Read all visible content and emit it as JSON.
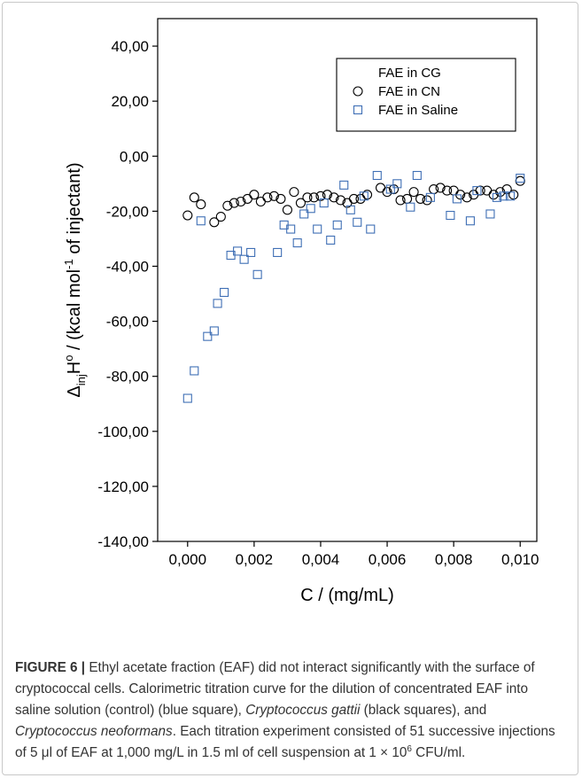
{
  "chart_data": {
    "type": "scatter",
    "xlabel": "C / (mg/mL)",
    "ylabel_parts": {
      "delta": "Δ",
      "sub": "inj",
      "h": "H",
      "sup": "o",
      "mid": " / (kcal mol",
      "sup2": "-1",
      "end": " of injectant)"
    },
    "xlim": [
      -0.0009,
      0.0105
    ],
    "ylim": [
      -140,
      50
    ],
    "xticks": [
      "0,000",
      "0,002",
      "0,004",
      "0,006",
      "0,008",
      "0,010"
    ],
    "yticks": [
      "40,00",
      "20,00",
      "0,00",
      "-20,00",
      "-40,00",
      "-60,00",
      "-80,00",
      "-100,00",
      "-120,00",
      "-140,00"
    ],
    "legend_position": "top-right",
    "series": [
      {
        "name": "FAE in CG",
        "marker": "none",
        "color": "#000000",
        "x": [],
        "y": []
      },
      {
        "name": "FAE in CN",
        "marker": "circle",
        "color": "#000000",
        "x": [
          0.0,
          0.0002,
          0.0004,
          0.0008,
          0.001,
          0.0012,
          0.0014,
          0.0016,
          0.0018,
          0.002,
          0.0022,
          0.0024,
          0.0026,
          0.0028,
          0.003,
          0.0032,
          0.0034,
          0.0036,
          0.0038,
          0.004,
          0.0042,
          0.0044,
          0.0046,
          0.0048,
          0.005,
          0.0052,
          0.0054,
          0.0058,
          0.006,
          0.0062,
          0.0064,
          0.0066,
          0.0068,
          0.007,
          0.0072,
          0.0074,
          0.0076,
          0.0078,
          0.008,
          0.0082,
          0.0084,
          0.0086,
          0.0088,
          0.009,
          0.0092,
          0.0094,
          0.0096,
          0.0098,
          0.01
        ],
        "y": [
          -21.5,
          -15,
          -17.5,
          -24,
          -22,
          -18,
          -17,
          -16.5,
          -15.5,
          -14,
          -16.5,
          -15,
          -14.5,
          -15.5,
          -19.5,
          -13,
          -17,
          -15,
          -15,
          -14.5,
          -14,
          -15,
          -16,
          -17,
          -15.5,
          -15.5,
          -14,
          -11.5,
          -13,
          -12,
          -16,
          -15.5,
          -13,
          -15.5,
          -16,
          -12,
          -11.5,
          -12.5,
          -12.5,
          -14,
          -15,
          -14,
          -12.5,
          -12.5,
          -14,
          -13,
          -12,
          -14,
          -9
        ]
      },
      {
        "name": "FAE in Saline",
        "marker": "square",
        "color": "#3f6fb5",
        "x": [
          0.0,
          0.0002,
          0.0004,
          0.0006,
          0.0008,
          0.0009,
          0.0011,
          0.0013,
          0.0015,
          0.0017,
          0.0019,
          0.0021,
          0.0027,
          0.0029,
          0.0031,
          0.0033,
          0.0035,
          0.0037,
          0.0039,
          0.0041,
          0.0043,
          0.0045,
          0.0047,
          0.0049,
          0.0051,
          0.0053,
          0.0055,
          0.0057,
          0.0061,
          0.0063,
          0.0067,
          0.0069,
          0.0073,
          0.0079,
          0.0081,
          0.0085,
          0.0087,
          0.0091,
          0.0093,
          0.0095,
          0.0097,
          0.01
        ],
        "y": [
          -88,
          -78,
          -23.5,
          -65.5,
          -63.5,
          -53.5,
          -49.5,
          -36,
          -34.5,
          -37.5,
          -35,
          -43,
          -35,
          -25,
          -26.5,
          -31.5,
          -21,
          -19,
          -26.5,
          -17,
          -30.5,
          -25,
          -10.5,
          -19.5,
          -24,
          -14.5,
          -26.5,
          -7,
          -12,
          -10,
          -18.5,
          -7,
          -15,
          -21.5,
          -15.5,
          -23.5,
          -12.5,
          -21,
          -15,
          -14.5,
          -14.5,
          -8
        ]
      }
    ]
  },
  "caption": {
    "fig_label": "FIGURE 6",
    "sep": " | ",
    "t1": "Ethyl acetate fraction (EAF) did not interact significantly with the surface of cryptococcal cells. Calorimetric titration curve for the dilution of concentrated EAF into saline solution (control) (blue square), ",
    "i1": "Cryptococcus gattii",
    "t2": " (black squares), and ",
    "i2": "Cryptococcus neoformans",
    "t3": ". Each titration experiment consisted of 51 successive injections of 5 μl of EAF at 1,000 mg/L in 1.5 ml of cell suspension at 1 × 10",
    "sup": "6",
    "t4": " CFU/ml."
  }
}
